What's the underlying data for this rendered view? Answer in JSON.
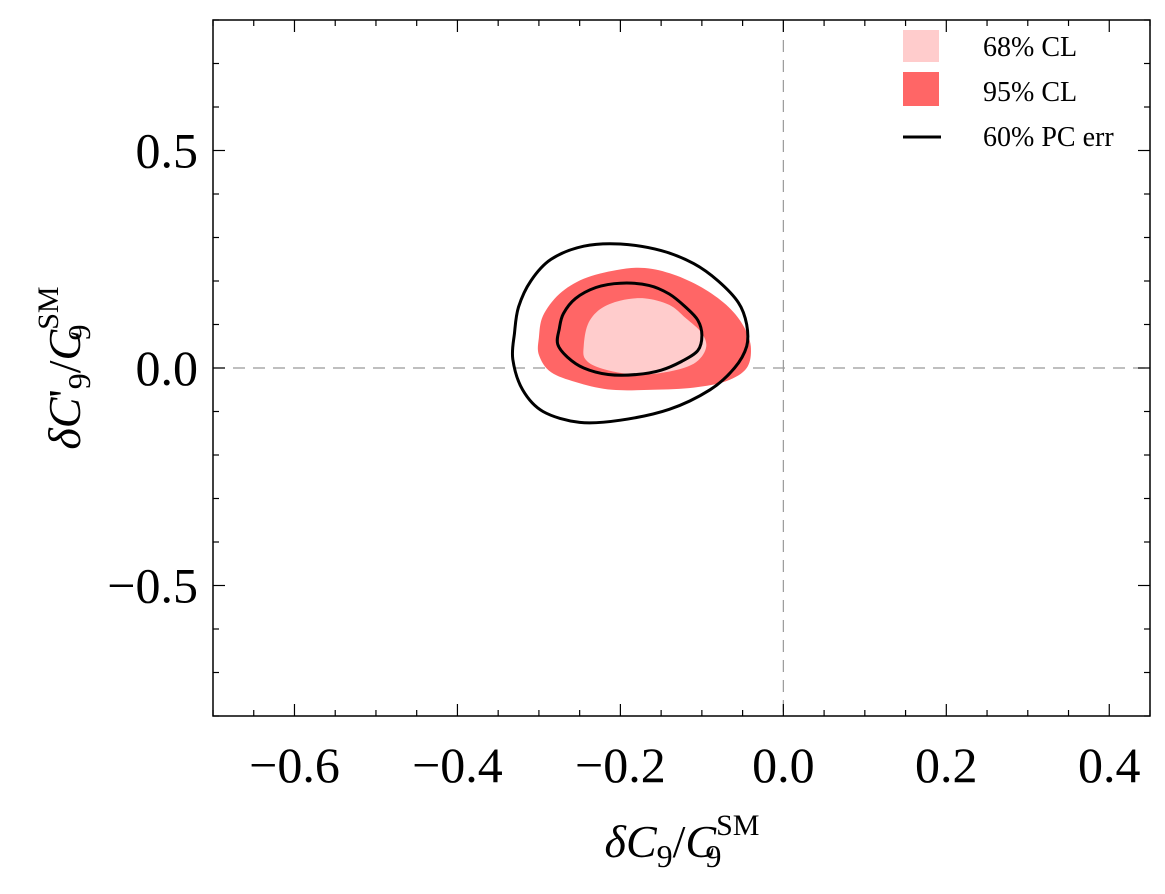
{
  "chart_data": {
    "type": "contour",
    "title": "",
    "xlabel": {
      "delta": "δ",
      "c": "C",
      "sub": "9",
      "slash": "/",
      "c2": "C",
      "sup": "SM",
      "sub2": "9"
    },
    "ylabel": {
      "delta": "δ",
      "c": "C",
      "prime": "'",
      "sub": "9",
      "slash": "/",
      "c2": "C",
      "sup": "SM",
      "sub2": "9"
    },
    "xlim": [
      -0.7,
      0.45
    ],
    "ylim": [
      -0.8,
      0.8
    ],
    "xticks": [
      -0.6,
      -0.4,
      -0.2,
      0.0,
      0.2,
      0.4
    ],
    "xtick_labels": [
      "−0.6",
      "−0.4",
      "−0.2",
      "0.0",
      "0.2",
      "0.4"
    ],
    "yticks": [
      -0.5,
      0.0,
      0.5
    ],
    "ytick_labels": [
      "−0.5",
      "0.0",
      "0.5"
    ],
    "reference_lines": {
      "x": 0.0,
      "y": 0.0,
      "style": "dashed"
    },
    "legend_position": "top-right",
    "colors": {
      "cl68": "#ffcccc",
      "cl95": "#ff6666",
      "pc": "#000000",
      "ref": "#999999"
    },
    "series": [
      {
        "name": "68% CL",
        "kind": "filled",
        "points": [
          [
            -0.245,
            0.05
          ],
          [
            -0.24,
            0.1
          ],
          [
            -0.225,
            0.135
          ],
          [
            -0.2,
            0.155
          ],
          [
            -0.17,
            0.16
          ],
          [
            -0.14,
            0.145
          ],
          [
            -0.12,
            0.115
          ],
          [
            -0.1,
            0.08
          ],
          [
            -0.095,
            0.045
          ],
          [
            -0.11,
            0.01
          ],
          [
            -0.145,
            -0.01
          ],
          [
            -0.185,
            -0.015
          ],
          [
            -0.225,
            0.0
          ],
          [
            -0.243,
            0.02
          ]
        ]
      },
      {
        "name": "95% CL",
        "kind": "filled",
        "points": [
          [
            -0.3,
            0.07
          ],
          [
            -0.295,
            0.12
          ],
          [
            -0.275,
            0.17
          ],
          [
            -0.245,
            0.205
          ],
          [
            -0.205,
            0.225
          ],
          [
            -0.17,
            0.23
          ],
          [
            -0.135,
            0.215
          ],
          [
            -0.1,
            0.185
          ],
          [
            -0.07,
            0.145
          ],
          [
            -0.05,
            0.1
          ],
          [
            -0.04,
            0.05
          ],
          [
            -0.045,
            0.0
          ],
          [
            -0.07,
            -0.03
          ],
          [
            -0.11,
            -0.045
          ],
          [
            -0.16,
            -0.05
          ],
          [
            -0.21,
            -0.05
          ],
          [
            -0.25,
            -0.035
          ],
          [
            -0.285,
            -0.01
          ],
          [
            -0.3,
            0.03
          ]
        ]
      },
      {
        "name": "60% PC err",
        "kind": "line",
        "contours": [
          [
            [
              -0.33,
              0.08
            ],
            [
              -0.325,
              0.14
            ],
            [
              -0.31,
              0.2
            ],
            [
              -0.285,
              0.25
            ],
            [
              -0.245,
              0.28
            ],
            [
              -0.2,
              0.285
            ],
            [
              -0.15,
              0.27
            ],
            [
              -0.11,
              0.24
            ],
            [
              -0.08,
              0.2
            ],
            [
              -0.055,
              0.15
            ],
            [
              -0.045,
              0.1
            ],
            [
              -0.045,
              0.05
            ],
            [
              -0.06,
              0.0
            ],
            [
              -0.09,
              -0.05
            ],
            [
              -0.14,
              -0.095
            ],
            [
              -0.2,
              -0.12
            ],
            [
              -0.25,
              -0.125
            ],
            [
              -0.295,
              -0.1
            ],
            [
              -0.32,
              -0.05
            ],
            [
              -0.332,
              0.02
            ]
          ],
          [
            [
              -0.275,
              0.09
            ],
            [
              -0.27,
              0.125
            ],
            [
              -0.255,
              0.16
            ],
            [
              -0.23,
              0.185
            ],
            [
              -0.2,
              0.195
            ],
            [
              -0.165,
              0.19
            ],
            [
              -0.14,
              0.17
            ],
            [
              -0.12,
              0.14
            ],
            [
              -0.105,
              0.11
            ],
            [
              -0.1,
              0.075
            ],
            [
              -0.105,
              0.04
            ],
            [
              -0.125,
              0.015
            ],
            [
              -0.15,
              -0.005
            ],
            [
              -0.18,
              -0.015
            ],
            [
              -0.215,
              -0.015
            ],
            [
              -0.245,
              0.0
            ],
            [
              -0.265,
              0.025
            ],
            [
              -0.277,
              0.055
            ]
          ]
        ]
      }
    ]
  }
}
